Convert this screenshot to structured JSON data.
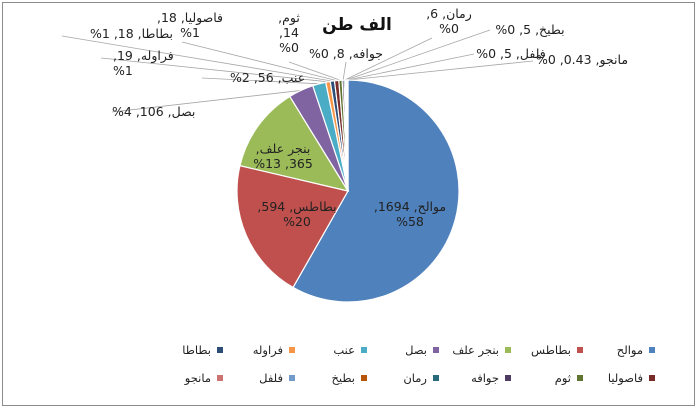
{
  "chart_data": {
    "type": "pie",
    "title": "الف طن",
    "categories": [
      "موالح",
      "بطاطس",
      "بنجر علف",
      "بصل",
      "عنب",
      "فراوله",
      "بطاطا",
      "فاصوليا",
      "ثوم",
      "جوافه",
      "رمان",
      "بطيخ",
      "فلفل",
      "مانجو"
    ],
    "values": [
      1694,
      594,
      365,
      106,
      56,
      19,
      18,
      18,
      14,
      8,
      6,
      5,
      5,
      0.43
    ],
    "data_labels": [
      [
        "موالح, 1694,",
        "%58"
      ],
      [
        "بطاطس, 594,",
        "%20"
      ],
      [
        "بنجر علف,",
        "365, %13"
      ],
      [
        "بصل, 106, 4%"
      ],
      [
        "عنب, 56, 2%"
      ],
      [
        "فراوله, 19,",
        "%1"
      ],
      [
        "بطاطا, 18, 1%"
      ],
      [
        "فاصوليا, 18,",
        "%1"
      ],
      [
        "ثوم,",
        "14,",
        "%0"
      ],
      [
        "جوافه, 8, 0%"
      ],
      [
        "رمان, 6,",
        "%0"
      ],
      [
        "بطيخ, 5, 0%"
      ],
      [
        "فلفل, 5, 0%"
      ],
      [
        "مانجو, 0.43, 0%"
      ]
    ],
    "colors": [
      "#4F81BD",
      "#C0504D",
      "#9BBB59",
      "#8064A2",
      "#4BACC6",
      "#F79646",
      "#2C4D75",
      "#772C2A",
      "#5F7530",
      "#4D3B62",
      "#276A7C",
      "#B65708",
      "#729ACA",
      "#CD7371"
    ],
    "legend_position": "bottom"
  }
}
